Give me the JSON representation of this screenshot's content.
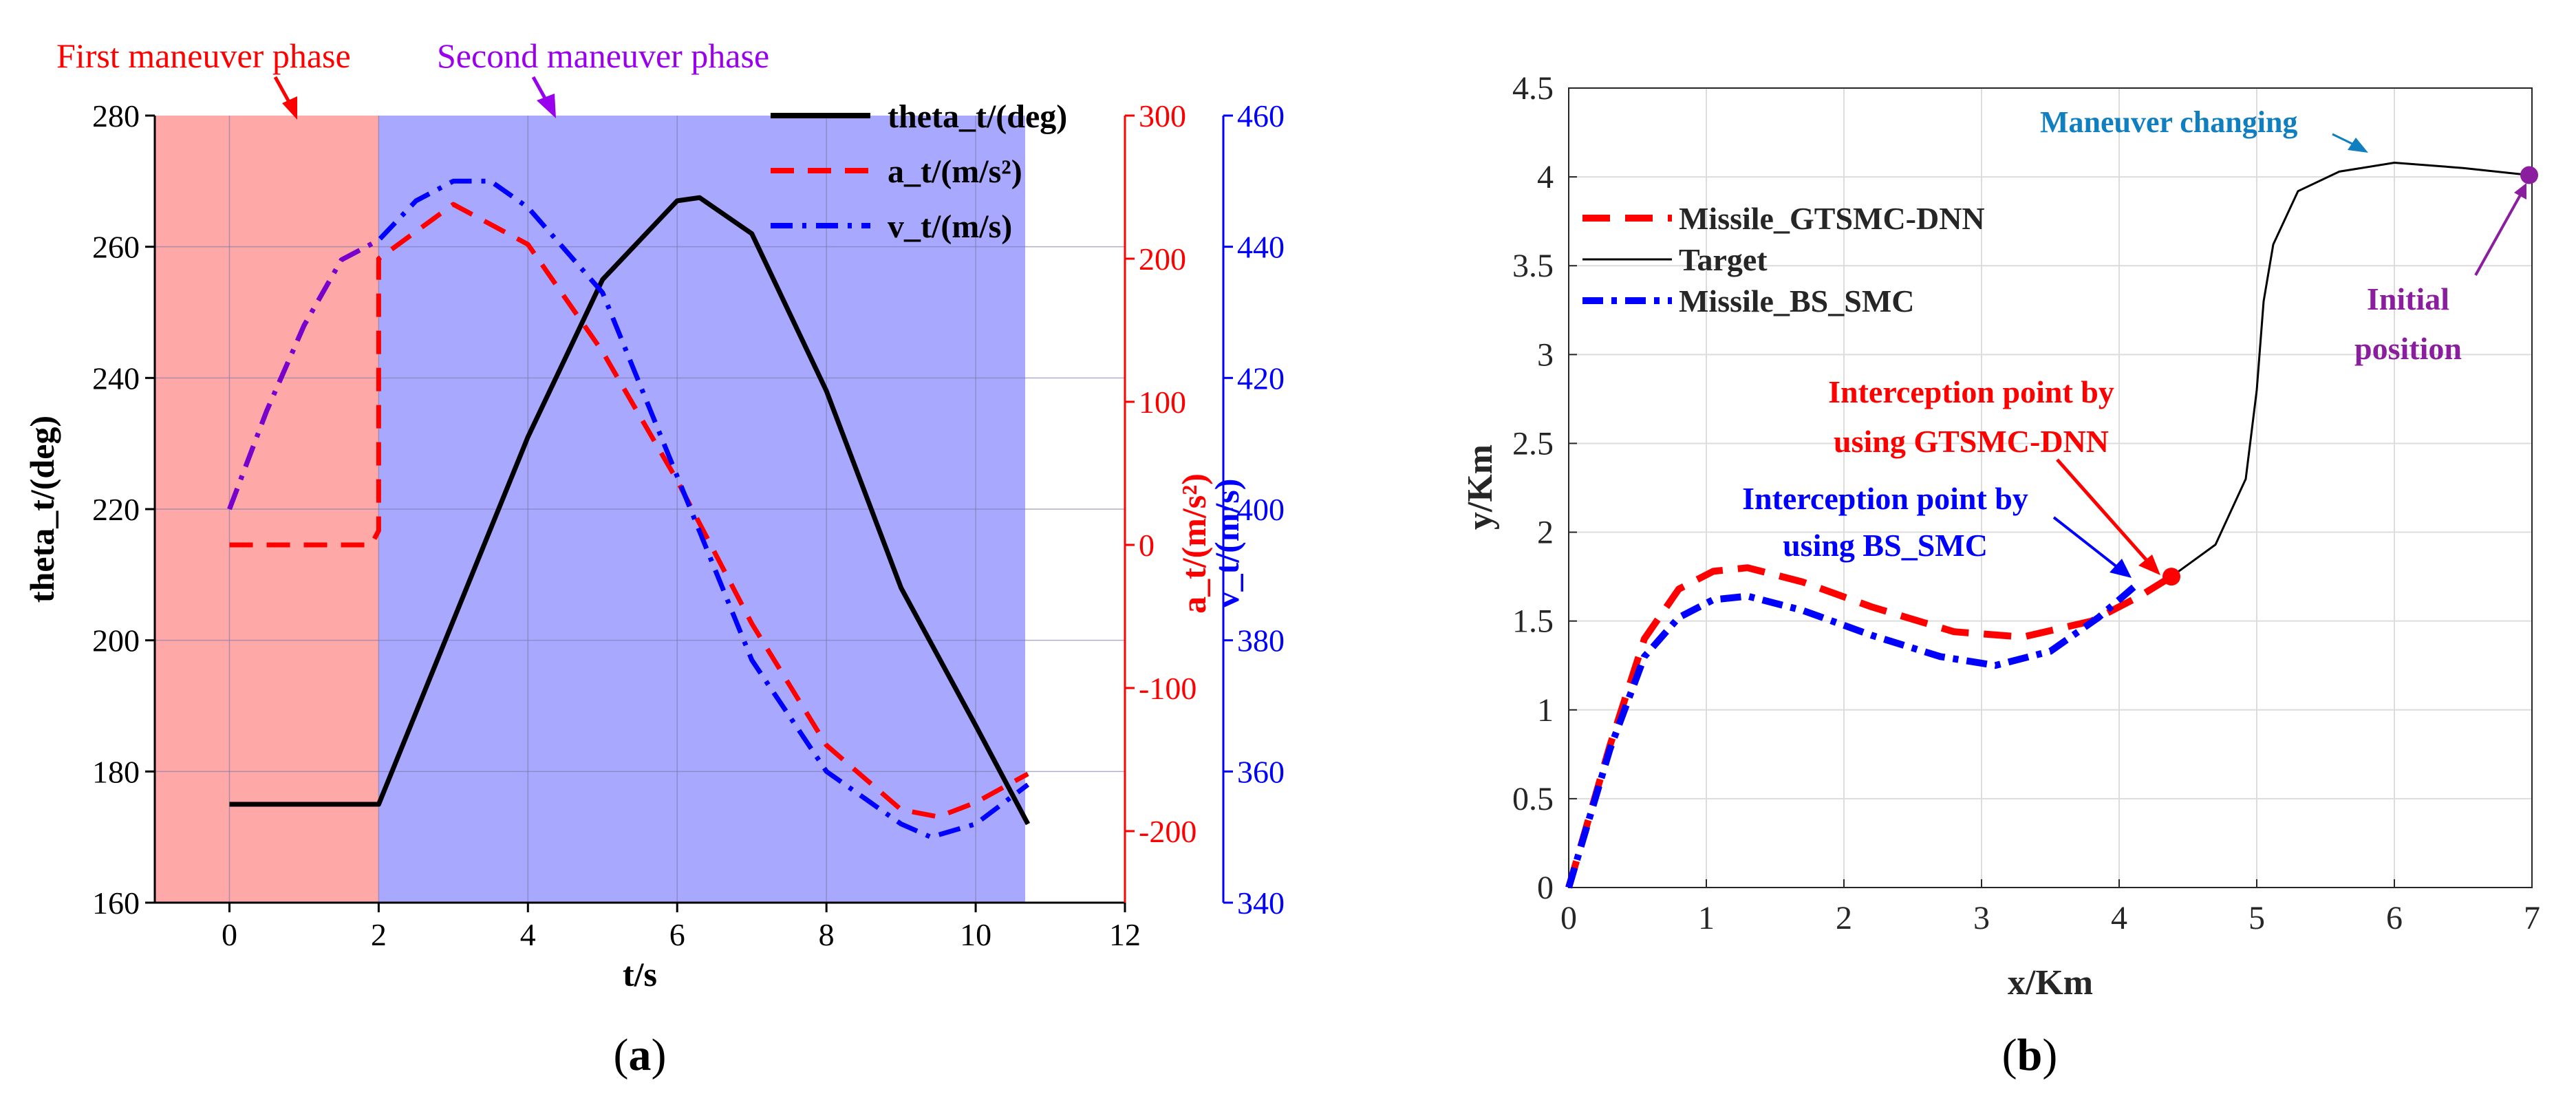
{
  "chart_data": [
    {
      "panel": "(a)",
      "panel_label": "a",
      "type": "line",
      "xlabel": "t/s",
      "x_range": [
        -1,
        12
      ],
      "x_ticks": [
        0,
        2,
        4,
        6,
        8,
        10,
        12
      ],
      "axes": {
        "left": {
          "label": "theta_t/(deg)",
          "range": [
            160,
            280
          ],
          "ticks": [
            160,
            180,
            200,
            220,
            240,
            260,
            280
          ],
          "color": "#000000"
        },
        "right1": {
          "label": "a_t/(m/s²)",
          "range": [
            -250,
            300
          ],
          "ticks": [
            -200,
            -100,
            0,
            100,
            200,
            300
          ],
          "color": "#ff0000"
        },
        "right2": {
          "label": "v_t/(m/s)",
          "range": [
            340,
            460
          ],
          "ticks": [
            340,
            360,
            380,
            400,
            420,
            440,
            460
          ],
          "color": "#0000ff"
        }
      },
      "regions": [
        {
          "label": "First maneuver phase",
          "x_range": [
            -1,
            2
          ],
          "color": "#ffa8a8",
          "label_color": "#ff0000"
        },
        {
          "label": "Second maneuver phase",
          "x_range": [
            2,
            10.7
          ],
          "color": "#a8a8ff",
          "label_color": "#9900ee"
        }
      ],
      "series": [
        {
          "name": "theta_t/(deg)",
          "axis": "left",
          "color": "#000000",
          "style": "solid",
          "x": [
            0,
            2,
            3,
            4,
            5,
            6,
            6.3,
            7,
            8,
            9,
            10,
            10.7
          ],
          "y": [
            175,
            175,
            203,
            231,
            255,
            267,
            267.5,
            262,
            238,
            208,
            187,
            172
          ]
        },
        {
          "name": "a_t/(m/s²)",
          "axis": "right1",
          "color": "#ff0000",
          "style": "dash",
          "x": [
            0,
            1.9,
            2,
            2,
            3,
            4,
            5,
            6,
            7,
            8,
            9,
            9.5,
            10,
            10.7
          ],
          "y": [
            0,
            0,
            10,
            200,
            238,
            210,
            135,
            45,
            -55,
            -140,
            -185,
            -190,
            -180,
            -160
          ]
        },
        {
          "name": "v_t/(m/s)",
          "axis": "right2",
          "color": "#0000ff",
          "style": "dashdot",
          "x": [
            0,
            0.5,
            1,
            1.5,
            2,
            2.5,
            3,
            3.5,
            4,
            5,
            6,
            7,
            8,
            9,
            9.4,
            10,
            10.7
          ],
          "y": [
            400,
            415,
            428,
            438,
            441,
            447,
            450,
            450,
            446,
            433,
            405,
            377,
            360,
            352,
            350,
            352,
            358
          ]
        }
      ],
      "annotations": [
        "First maneuver phase",
        "Second maneuver phase"
      ]
    },
    {
      "panel": "(b)",
      "panel_label": "b",
      "type": "line",
      "xlabel": "x/Km",
      "ylabel": "y/Km",
      "xlim": [
        0,
        7
      ],
      "ylim": [
        0,
        4.5
      ],
      "x_ticks": [
        0,
        1,
        2,
        3,
        4,
        5,
        6,
        7
      ],
      "y_ticks": [
        0,
        0.5,
        1,
        1.5,
        2,
        2.5,
        3,
        3.5,
        4,
        4.5
      ],
      "grid": true,
      "legend": "top-left",
      "series": [
        {
          "name": "Missile_GTSMC-DNN",
          "color": "#ff0000",
          "style": "dash",
          "x": [
            0,
            0.3,
            0.55,
            0.8,
            1.05,
            1.3,
            1.7,
            2.2,
            2.8,
            3.3,
            3.8,
            4.15,
            4.38
          ],
          "y": [
            0,
            0.8,
            1.4,
            1.68,
            1.78,
            1.8,
            1.72,
            1.58,
            1.44,
            1.41,
            1.5,
            1.64,
            1.75
          ]
        },
        {
          "name": "Target",
          "color": "#000000",
          "style": "solid",
          "x": [
            4.38,
            4.7,
            4.92,
            5.0,
            5.05,
            5.12,
            5.3,
            5.6,
            6.0,
            6.5,
            6.98
          ],
          "y": [
            1.75,
            1.93,
            2.3,
            2.8,
            3.3,
            3.62,
            3.92,
            4.03,
            4.08,
            4.05,
            4.01
          ]
        },
        {
          "name": "Missile_BS_SMC",
          "color": "#0000ff",
          "style": "dashdot",
          "x": [
            0,
            0.3,
            0.55,
            0.8,
            1.05,
            1.3,
            1.7,
            2.2,
            2.7,
            3.1,
            3.5,
            3.85,
            4.15
          ],
          "y": [
            0,
            0.78,
            1.3,
            1.52,
            1.62,
            1.64,
            1.56,
            1.42,
            1.3,
            1.25,
            1.33,
            1.52,
            1.72
          ]
        }
      ],
      "annotations": [
        {
          "text": "Maneuver changing",
          "color": "#0f7fc0"
        },
        {
          "text_lines": [
            "Initial",
            "position"
          ],
          "color": "#8b1e9e"
        },
        {
          "text_lines": [
            "Interception point by",
            "using GTSMC-DNN"
          ],
          "color": "#ff0000"
        },
        {
          "text_lines": [
            "Interception point by",
            "using BS_SMC"
          ],
          "color": "#0000ff"
        }
      ],
      "markers": [
        {
          "name": "initial-position",
          "x": 6.98,
          "y": 4.01,
          "color": "#8b1e9e"
        },
        {
          "name": "gtsmc-interception",
          "x": 4.38,
          "y": 1.75,
          "color": "#ff0000"
        }
      ]
    }
  ]
}
